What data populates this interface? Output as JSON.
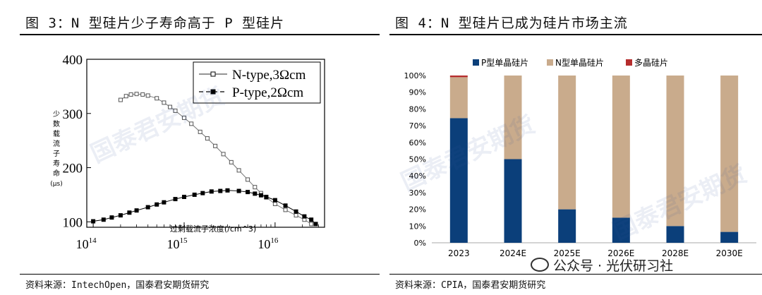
{
  "left": {
    "title": "图 3：N 型硅片少子寿命高于 P 型硅片",
    "source": "资料来源：IntechOpen，国泰君安期货研究",
    "chart_data": {
      "type": "scatter",
      "ylabel": "少数载流子寿命 (μs)",
      "xlabel": "过剩载流子浓度(/cm^3)",
      "x_scale": "log",
      "xlim": [
        85000000000000.0,
        3.5e+16
      ],
      "ylim": [
        90,
        400
      ],
      "y_ticks": [
        100,
        200,
        300,
        400
      ],
      "x_ticks": [
        {
          "value": 100000000000000.0,
          "base": "10",
          "exp": "14"
        },
        {
          "value": 1000000000000000.0,
          "base": "10",
          "exp": "15"
        },
        {
          "value": 1e+16,
          "base": "10",
          "exp": "16"
        }
      ],
      "legend_position": "top-right",
      "series": [
        {
          "name": "N-type,3Ωcm",
          "marker": "open-square",
          "points": [
            [
              200000000000000.0,
              325
            ],
            [
              230000000000000.0,
              332
            ],
            [
              260000000000000.0,
              335
            ],
            [
              300000000000000.0,
              336
            ],
            [
              350000000000000.0,
              335
            ],
            [
              400000000000000.0,
              333
            ],
            [
              500000000000000.0,
              328
            ],
            [
              600000000000000.0,
              320
            ],
            [
              700000000000000.0,
              312
            ],
            [
              800000000000000.0,
              305
            ],
            [
              1000000000000000.0,
              292
            ],
            [
              1200000000000000.0,
              281
            ],
            [
              1500000000000000.0,
              266
            ],
            [
              1800000000000000.0,
              254
            ],
            [
              2200000000000000.0,
              240
            ],
            [
              2700000000000000.0,
              225
            ],
            [
              3300000000000000.0,
              210
            ],
            [
              4000000000000000.0,
              195
            ],
            [
              5000000000000000.0,
              178
            ],
            [
              6000000000000000.0,
              164
            ],
            [
              7000000000000000.0,
              153
            ],
            [
              8000000000000000.0,
              145
            ],
            [
              1e+16,
              133
            ],
            [
              1.3e+16,
              122
            ],
            [
              1.7e+16,
              112
            ],
            [
              2.1e+16,
              104
            ],
            [
              2.5e+16,
              96
            ]
          ]
        },
        {
          "name": "P-type,2Ωcm",
          "marker": "filled-square",
          "points": [
            [
              100000000000000.0,
              101
            ],
            [
              130000000000000.0,
              104
            ],
            [
              160000000000000.0,
              108
            ],
            [
              200000000000000.0,
              112
            ],
            [
              250000000000000.0,
              117
            ],
            [
              300000000000000.0,
              121
            ],
            [
              400000000000000.0,
              127
            ],
            [
              500000000000000.0,
              132
            ],
            [
              600000000000000.0,
              136
            ],
            [
              800000000000000.0,
              142
            ],
            [
              1000000000000000.0,
              146
            ],
            [
              1300000000000000.0,
              150
            ],
            [
              1600000000000000.0,
              153
            ],
            [
              2000000000000000.0,
              156
            ],
            [
              2500000000000000.0,
              157
            ],
            [
              3000000000000000.0,
              158
            ],
            [
              4000000000000000.0,
              157
            ],
            [
              5000000000000000.0,
              155
            ],
            [
              6000000000000000.0,
              152
            ],
            [
              7000000000000000.0,
              149
            ],
            [
              8000000000000000.0,
              146
            ],
            [
              1e+16,
              140
            ],
            [
              1.3e+16,
              130
            ],
            [
              1.7e+16,
              119
            ],
            [
              2.1e+16,
              110
            ],
            [
              2.5e+16,
              104
            ],
            [
              2.8e+16,
              96
            ]
          ]
        }
      ]
    }
  },
  "right": {
    "title": "图 4：N 型硅片已成为硅片市场主流",
    "source": "资料来源：CPIA，国泰君安期货研究",
    "chart_data": {
      "type": "bar",
      "stacked": true,
      "categories": [
        "2023",
        "2024E",
        "2025E",
        "2026E",
        "2028E",
        "2030E"
      ],
      "ylim": [
        0,
        100
      ],
      "y_ticks": [
        "0%",
        "10%",
        "20%",
        "30%",
        "40%",
        "50%",
        "60%",
        "70%",
        "80%",
        "90%",
        "100%"
      ],
      "legend_position": "top",
      "series": [
        {
          "name": "P型单晶硅片",
          "color": "#0b3f7a",
          "values": [
            74.5,
            50,
            20,
            15,
            10,
            6.5
          ]
        },
        {
          "name": "N型单晶硅片",
          "color": "#c9ab8c",
          "values": [
            24.5,
            50,
            80,
            85,
            90,
            93.5
          ]
        },
        {
          "name": "多晶硅片",
          "color": "#b52d2d",
          "values": [
            1,
            0,
            0,
            0,
            0,
            0
          ]
        }
      ]
    }
  },
  "watermark_text": "国泰君安期货",
  "wechat": "公众号 · 光伏研习社"
}
